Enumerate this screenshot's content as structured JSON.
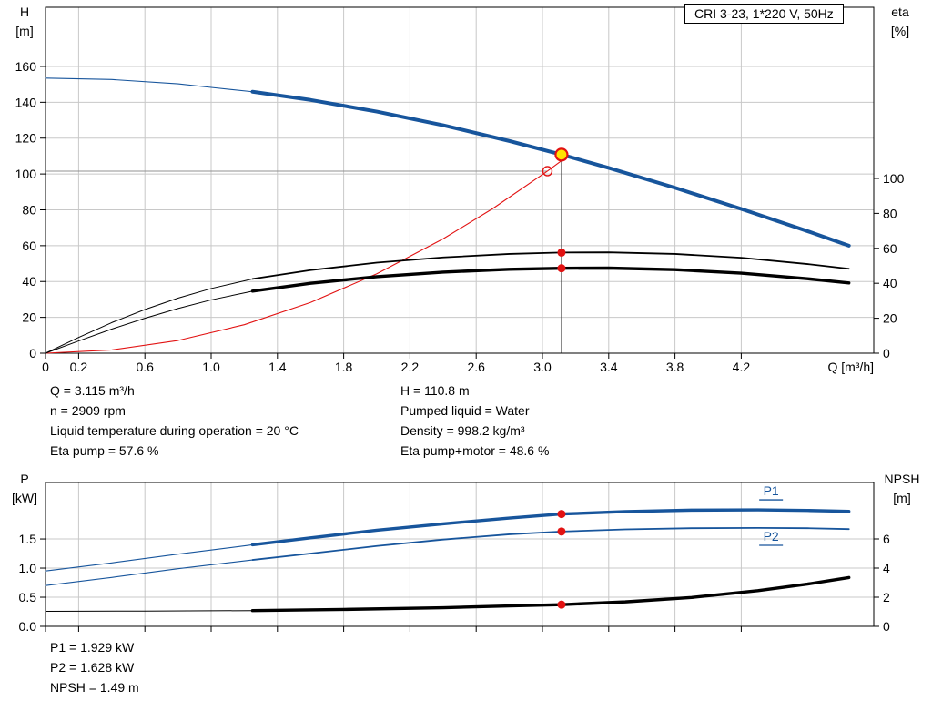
{
  "colors": {
    "accent_blue": "#17559c",
    "curve_red": "#e21212",
    "marker_yellow": "#ffe400",
    "grid": "#c8c8c8",
    "frame": "#000000",
    "ref_dark": "#333333",
    "ref_gray": "#909090"
  },
  "top_info": {
    "left": [
      "Q = 3.115 m³/h",
      "n = 2909 rpm",
      "Liquid temperature during operation = 20 °C",
      "Eta pump = 57.6 %"
    ],
    "right": [
      "H = 110.8 m",
      "Pumped liquid = Water",
      "Density = 998.2 kg/m³",
      "Eta pump+motor = 48.6 %"
    ]
  },
  "bottom_info": [
    "P1 = 1.929 kW",
    "P2 = 1.628 kW",
    "NPSH = 1.49 m"
  ],
  "chart_data": [
    {
      "type": "line",
      "title": "CRI 3-23, 1*220 V, 50Hz",
      "x_axis": {
        "label": "Q [m³/h]",
        "min": 0,
        "max": 5.0,
        "show_labels": true,
        "ticks": [
          {
            "v": 0,
            "label": "0"
          },
          {
            "v": 0.2,
            "label": "0.2"
          },
          {
            "v": 0.6,
            "label": "0.6"
          },
          {
            "v": 1.0,
            "label": "1.0"
          },
          {
            "v": 1.4,
            "label": "1.4"
          },
          {
            "v": 1.8,
            "label": "1.8"
          },
          {
            "v": 2.2,
            "label": "2.2"
          },
          {
            "v": 2.6,
            "label": "2.6"
          },
          {
            "v": 3.0,
            "label": "3.0"
          },
          {
            "v": 3.4,
            "label": "3.4"
          },
          {
            "v": 3.8,
            "label": "3.8"
          },
          {
            "v": 4.2,
            "label": "4.2"
          }
        ]
      },
      "left_axis": {
        "title": "H",
        "unit": "[m]",
        "min": 0,
        "max": 193,
        "ticks": [
          {
            "v": 0,
            "label": "0"
          },
          {
            "v": 20,
            "label": "20"
          },
          {
            "v": 40,
            "label": "40"
          },
          {
            "v": 60,
            "label": "60"
          },
          {
            "v": 80,
            "label": "80"
          },
          {
            "v": 100,
            "label": "100"
          },
          {
            "v": 120,
            "label": "120"
          },
          {
            "v": 140,
            "label": "140"
          },
          {
            "v": 160,
            "label": "160"
          }
        ]
      },
      "right_axis": {
        "title": "eta",
        "unit": "[%]",
        "min": 0,
        "max": 197.9,
        "ticks": [
          {
            "v": 0,
            "label": "0"
          },
          {
            "v": 20,
            "label": "20"
          },
          {
            "v": 40,
            "label": "40"
          },
          {
            "v": 60,
            "label": "60"
          },
          {
            "v": 80,
            "label": "80"
          },
          {
            "v": 100,
            "label": "100"
          }
        ]
      },
      "ref_lines": [
        {
          "name": "duty-head-line",
          "orient": "h",
          "v": 101.6,
          "to": 3.03,
          "axis": "left",
          "color": "#909090"
        },
        {
          "name": "duty-flow-line",
          "orient": "v",
          "x": 3.115,
          "to": 110.8,
          "axis": "left",
          "color": "#333333"
        }
      ],
      "series": [
        {
          "name": "pump-curve-extension",
          "axis": "left",
          "color": "#17559c",
          "width": 1.1,
          "points": [
            [
              0,
              153.5
            ],
            [
              0.4,
              152.7
            ],
            [
              0.8,
              150.3
            ],
            [
              1.0,
              148.3
            ],
            [
              1.25,
              145.9
            ]
          ]
        },
        {
          "name": "pump-curve",
          "axis": "left",
          "color": "#17559c",
          "width": 4,
          "points": [
            [
              1.25,
              145.9
            ],
            [
              1.6,
              141.3
            ],
            [
              2.0,
              134.8
            ],
            [
              2.4,
              127.2
            ],
            [
              2.8,
              118.4
            ],
            [
              3.115,
              110.8
            ],
            [
              3.4,
              103.4
            ],
            [
              3.8,
              92.3
            ],
            [
              4.2,
              80.5
            ],
            [
              4.6,
              68.1
            ],
            [
              4.85,
              60
            ]
          ]
        },
        {
          "name": "system-curve",
          "axis": "left",
          "color": "#e21212",
          "width": 1.1,
          "points": [
            [
              0,
              0
            ],
            [
              0.4,
              1.8
            ],
            [
              0.8,
              7.1
            ],
            [
              1.2,
              15.9
            ],
            [
              1.6,
              28.3
            ],
            [
              2.0,
              44.3
            ],
            [
              2.4,
              63.8
            ],
            [
              2.7,
              80.7
            ],
            [
              3.03,
              101.6
            ],
            [
              3.15,
              109.8
            ]
          ]
        },
        {
          "name": "eta-pump-extension",
          "axis": "right",
          "color": "#000000",
          "width": 1,
          "points": [
            [
              0,
              0
            ],
            [
              0.2,
              9
            ],
            [
              0.4,
              17.5
            ],
            [
              0.6,
              25
            ],
            [
              0.8,
              31.5
            ],
            [
              1.0,
              37
            ],
            [
              1.25,
              42.5
            ]
          ]
        },
        {
          "name": "eta-pump-curve",
          "axis": "right",
          "color": "#000000",
          "width": 1.8,
          "points": [
            [
              1.25,
              42.5
            ],
            [
              1.6,
              47.5
            ],
            [
              2.0,
              51.8
            ],
            [
              2.4,
              54.8
            ],
            [
              2.8,
              56.8
            ],
            [
              3.115,
              57.6
            ],
            [
              3.4,
              57.7
            ],
            [
              3.8,
              56.8
            ],
            [
              4.2,
              54.6
            ],
            [
              4.6,
              51
            ],
            [
              4.85,
              48.3
            ]
          ]
        },
        {
          "name": "eta-pump-motor-extension",
          "axis": "right",
          "color": "#000000",
          "width": 1,
          "points": [
            [
              0,
              0
            ],
            [
              0.2,
              7
            ],
            [
              0.4,
              13.8
            ],
            [
              0.6,
              20
            ],
            [
              0.8,
              25.6
            ],
            [
              1.0,
              30.5
            ],
            [
              1.25,
              35.5
            ]
          ]
        },
        {
          "name": "eta-pump-motor-curve",
          "axis": "right",
          "color": "#000000",
          "width": 3.4,
          "points": [
            [
              1.25,
              35.5
            ],
            [
              1.6,
              40
            ],
            [
              2.0,
              43.8
            ],
            [
              2.4,
              46.4
            ],
            [
              2.8,
              48.0
            ],
            [
              3.115,
              48.6
            ],
            [
              3.4,
              48.7
            ],
            [
              3.8,
              47.8
            ],
            [
              4.2,
              45.8
            ],
            [
              4.6,
              42.6
            ],
            [
              4.85,
              40.2
            ]
          ]
        }
      ],
      "markers": [
        {
          "name": "requested-duty-point",
          "x": 3.03,
          "v": 101.6,
          "axis": "left",
          "r": 5,
          "fill": "none",
          "stroke": "#e21212",
          "stroke_width": 1.4
        },
        {
          "name": "operating-point",
          "x": 3.115,
          "v": 110.8,
          "axis": "left",
          "r": 6.5,
          "fill": "#ffe400",
          "stroke": "#e21212",
          "stroke_width": 2.2
        },
        {
          "name": "eta-pump-point",
          "x": 3.115,
          "v": 57.6,
          "axis": "right",
          "r": 4.5,
          "fill": "#e21212",
          "stroke": "none"
        },
        {
          "name": "eta-pump-motor-point",
          "x": 3.115,
          "v": 48.6,
          "axis": "right",
          "r": 4.5,
          "fill": "#e21212",
          "stroke": "none"
        }
      ]
    },
    {
      "type": "line",
      "x_axis": {
        "min": 0,
        "max": 5.0,
        "show_labels": false,
        "ticks": [
          {
            "v": 0,
            "label": "0"
          },
          {
            "v": 0.2,
            "label": "0.2"
          },
          {
            "v": 0.6,
            "label": "0.6"
          },
          {
            "v": 1.0,
            "label": "1.0"
          },
          {
            "v": 1.4,
            "label": "1.4"
          },
          {
            "v": 1.8,
            "label": "1.8"
          },
          {
            "v": 2.2,
            "label": "2.2"
          },
          {
            "v": 2.6,
            "label": "2.6"
          },
          {
            "v": 3.0,
            "label": "3.0"
          },
          {
            "v": 3.4,
            "label": "3.4"
          },
          {
            "v": 3.8,
            "label": "3.8"
          },
          {
            "v": 4.2,
            "label": "4.2"
          }
        ]
      },
      "left_axis": {
        "title": "P",
        "unit": "[kW]",
        "min": 0,
        "max": 2.47,
        "ticks": [
          {
            "v": 0,
            "label": "0.0"
          },
          {
            "v": 0.5,
            "label": "0.5"
          },
          {
            "v": 1.0,
            "label": "1.0"
          },
          {
            "v": 1.5,
            "label": "1.5"
          }
        ]
      },
      "right_axis": {
        "title": "NPSH",
        "unit": "[m]",
        "min": 0,
        "max": 9.875,
        "ticks": [
          {
            "v": 0,
            "label": "0"
          },
          {
            "v": 2,
            "label": "2"
          },
          {
            "v": 4,
            "label": "4"
          },
          {
            "v": 6,
            "label": "6"
          }
        ]
      },
      "series": [
        {
          "name": "p1-extension",
          "axis": "left",
          "color": "#17559c",
          "width": 1.1,
          "points": [
            [
              0,
              0.95
            ],
            [
              0.4,
              1.09
            ],
            [
              0.8,
              1.24
            ],
            [
              1.25,
              1.4
            ]
          ]
        },
        {
          "name": "p1-curve",
          "axis": "left",
          "color": "#17559c",
          "width": 3.4,
          "points": [
            [
              1.25,
              1.4
            ],
            [
              1.6,
              1.52
            ],
            [
              2.0,
              1.65
            ],
            [
              2.4,
              1.76
            ],
            [
              2.8,
              1.86
            ],
            [
              3.115,
              1.929
            ],
            [
              3.5,
              1.97
            ],
            [
              3.9,
              1.995
            ],
            [
              4.3,
              2.0
            ],
            [
              4.6,
              1.99
            ],
            [
              4.85,
              1.975
            ]
          ]
        },
        {
          "name": "p2-extension",
          "axis": "left",
          "color": "#17559c",
          "width": 1.1,
          "points": [
            [
              0,
              0.7
            ],
            [
              0.4,
              0.84
            ],
            [
              0.8,
              0.99
            ],
            [
              1.25,
              1.14
            ]
          ]
        },
        {
          "name": "p2-curve",
          "axis": "left",
          "color": "#17559c",
          "width": 1.8,
          "points": [
            [
              1.25,
              1.14
            ],
            [
              1.6,
              1.25
            ],
            [
              2.0,
              1.38
            ],
            [
              2.4,
              1.49
            ],
            [
              2.8,
              1.58
            ],
            [
              3.115,
              1.628
            ],
            [
              3.5,
              1.665
            ],
            [
              3.9,
              1.685
            ],
            [
              4.3,
              1.69
            ],
            [
              4.6,
              1.685
            ],
            [
              4.85,
              1.67
            ]
          ]
        },
        {
          "name": "npsh-extension",
          "axis": "right",
          "color": "#000000",
          "width": 1,
          "points": [
            [
              0,
              1.03
            ],
            [
              0.6,
              1.05
            ],
            [
              1.25,
              1.08
            ]
          ]
        },
        {
          "name": "npsh-curve",
          "axis": "right",
          "color": "#000000",
          "width": 3.4,
          "points": [
            [
              1.25,
              1.08
            ],
            [
              1.8,
              1.16
            ],
            [
              2.4,
              1.28
            ],
            [
              2.8,
              1.4
            ],
            [
              3.115,
              1.49
            ],
            [
              3.5,
              1.68
            ],
            [
              3.9,
              1.98
            ],
            [
              4.3,
              2.45
            ],
            [
              4.6,
              2.9
            ],
            [
              4.85,
              3.35
            ]
          ]
        }
      ],
      "markers": [
        {
          "name": "p1-point",
          "x": 3.115,
          "v": 1.929,
          "axis": "left",
          "r": 4.5,
          "fill": "#e21212",
          "stroke": "none"
        },
        {
          "name": "p2-point",
          "x": 3.115,
          "v": 1.628,
          "axis": "left",
          "r": 4.5,
          "fill": "#e21212",
          "stroke": "none"
        },
        {
          "name": "npsh-point",
          "x": 3.115,
          "v": 1.49,
          "axis": "right",
          "r": 4.5,
          "fill": "#e21212",
          "stroke": "none"
        }
      ],
      "annotations": [
        {
          "text": "P1",
          "x": 4.38,
          "v": 2.25,
          "axis": "left",
          "color": "#17559c",
          "underline": true
        },
        {
          "text": "P2",
          "x": 4.38,
          "v": 1.47,
          "axis": "left",
          "color": "#17559c",
          "underline": true
        }
      ]
    }
  ]
}
